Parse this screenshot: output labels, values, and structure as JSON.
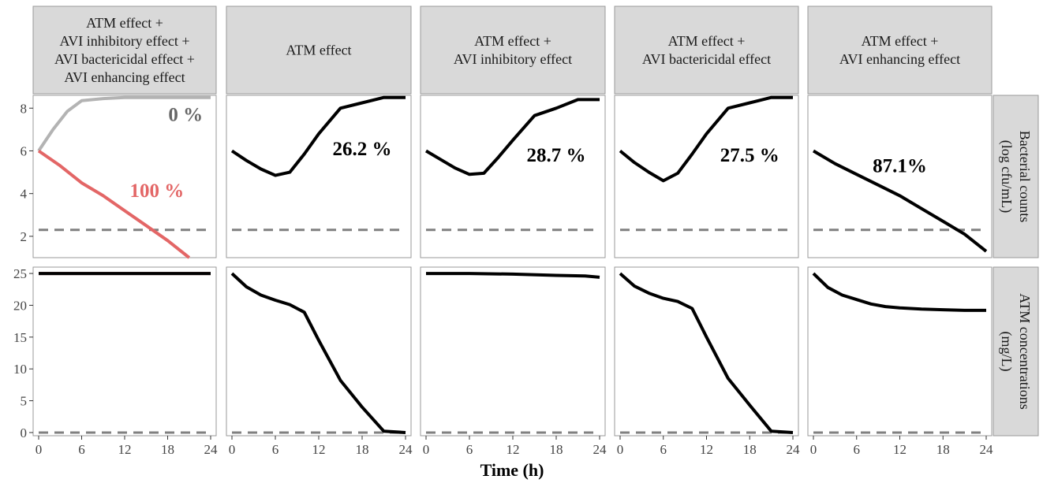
{
  "chart_data": {
    "type": "line",
    "xlabel": "Time (h)",
    "x_ticks": [
      0,
      6,
      12,
      18,
      24
    ],
    "xlim": [
      0,
      24
    ],
    "columns": [
      [
        "ATM effect +",
        "AVI inhibitory effect +",
        "AVI bactericidal effect +",
        "AVI enhancing effect"
      ],
      [
        "ATM effect"
      ],
      [
        "ATM effect +",
        "AVI inhibitory effect"
      ],
      [
        "ATM effect +",
        "AVI bactericidal effect"
      ],
      [
        "ATM effect +",
        "AVI enhancing effect"
      ]
    ],
    "rows": [
      {
        "label": [
          "Bacterial counts",
          "(log cfu/mL)"
        ],
        "ylim": [
          1,
          8.6
        ],
        "y_ticks": [
          2,
          4,
          6,
          8
        ]
      },
      {
        "label": [
          "ATM concentrations",
          "(mg/L)"
        ],
        "ylim": [
          -0.5,
          26
        ],
        "y_ticks": [
          0,
          5,
          10,
          15,
          20,
          25
        ]
      }
    ],
    "colors": {
      "main": "#000000",
      "grey": "#b3b3b3",
      "red": "#e36666",
      "dashed": "#808080",
      "panel_border": "#999999",
      "strip_fill": "#d9d9d9"
    },
    "panels": [
      {
        "row": 0,
        "col": 0,
        "dashed_y": 2.3,
        "series": [
          {
            "color": "#b3b3b3",
            "x": [
              0,
              2,
              4,
              6,
              9,
              12,
              18,
              24
            ],
            "y": [
              6.0,
              7.0,
              7.85,
              8.35,
              8.45,
              8.5,
              8.5,
              8.5
            ]
          },
          {
            "color": "#e36666",
            "x": [
              0,
              3,
              6,
              9,
              12,
              15,
              18,
              21
            ],
            "y": [
              6.0,
              5.3,
              4.5,
              3.9,
              3.2,
              2.5,
              1.8,
              1.0
            ]
          }
        ],
        "annotations": [
          {
            "text": "0 %",
            "x": 20.5,
            "y": 7.4,
            "color": "#666666"
          },
          {
            "text": "100 %",
            "x": 16.5,
            "y": 3.85,
            "color": "#e36666"
          }
        ]
      },
      {
        "row": 0,
        "col": 1,
        "dashed_y": 2.3,
        "series": [
          {
            "color": "#000000",
            "x": [
              0,
              2,
              4,
              6,
              8,
              10,
              12,
              15,
              18,
              21,
              24
            ],
            "y": [
              6.0,
              5.55,
              5.15,
              4.85,
              5.0,
              5.85,
              6.8,
              8.0,
              8.25,
              8.5,
              8.5
            ]
          }
        ],
        "annotations": [
          {
            "text": "26.2 %",
            "x": 18,
            "y": 5.8,
            "color": "#000000"
          }
        ]
      },
      {
        "row": 0,
        "col": 2,
        "dashed_y": 2.3,
        "series": [
          {
            "color": "#000000",
            "x": [
              0,
              2,
              4,
              6,
              8,
              10,
              12,
              15,
              18,
              21,
              24
            ],
            "y": [
              6.0,
              5.6,
              5.2,
              4.9,
              4.95,
              5.7,
              6.5,
              7.65,
              8.0,
              8.4,
              8.4
            ]
          }
        ],
        "annotations": [
          {
            "text": "28.7 %",
            "x": 18,
            "y": 5.5,
            "color": "#000000"
          }
        ]
      },
      {
        "row": 0,
        "col": 3,
        "dashed_y": 2.3,
        "series": [
          {
            "color": "#000000",
            "x": [
              0,
              2,
              4,
              6,
              8,
              10,
              12,
              15,
              18,
              21,
              24
            ],
            "y": [
              6.0,
              5.45,
              5.0,
              4.6,
              4.95,
              5.85,
              6.8,
              8.0,
              8.25,
              8.5,
              8.5
            ]
          }
        ],
        "annotations": [
          {
            "text": "27.5 %",
            "x": 18,
            "y": 5.5,
            "color": "#000000"
          }
        ]
      },
      {
        "row": 0,
        "col": 4,
        "dashed_y": 2.3,
        "series": [
          {
            "color": "#000000",
            "x": [
              0,
              3,
              6,
              9,
              12,
              15,
              18,
              21,
              24
            ],
            "y": [
              6.0,
              5.4,
              4.9,
              4.4,
              3.9,
              3.3,
              2.7,
              2.1,
              1.3
            ]
          }
        ],
        "annotations": [
          {
            "text": "87.1%",
            "x": 12,
            "y": 5.0,
            "color": "#000000"
          }
        ]
      },
      {
        "row": 1,
        "col": 0,
        "dashed_y": 0,
        "series": [
          {
            "color": "#e36666",
            "x": [
              0,
              24
            ],
            "y": [
              25,
              25
            ]
          },
          {
            "color": "#000000",
            "x": [
              0,
              24
            ],
            "y": [
              25,
              25
            ]
          }
        ],
        "annotations": []
      },
      {
        "row": 1,
        "col": 1,
        "dashed_y": 0,
        "series": [
          {
            "color": "#000000",
            "x": [
              0,
              2,
              4,
              6,
              8,
              10,
              12,
              15,
              18,
              21,
              24
            ],
            "y": [
              25,
              22.9,
              21.6,
              20.8,
              20.1,
              18.9,
              14.5,
              8.2,
              4.0,
              0.2,
              0
            ]
          }
        ],
        "annotations": []
      },
      {
        "row": 1,
        "col": 2,
        "dashed_y": 0,
        "series": [
          {
            "color": "#000000",
            "x": [
              0,
              6,
              12,
              18,
              22,
              24
            ],
            "y": [
              25,
              25,
              24.9,
              24.7,
              24.6,
              24.4
            ]
          }
        ],
        "annotations": []
      },
      {
        "row": 1,
        "col": 3,
        "dashed_y": 0,
        "series": [
          {
            "color": "#000000",
            "x": [
              0,
              2,
              4,
              6,
              8,
              10,
              12,
              15,
              18,
              21,
              24
            ],
            "y": [
              25,
              23.0,
              21.9,
              21.1,
              20.6,
              19.5,
              15.0,
              8.5,
              4.3,
              0.2,
              0
            ]
          }
        ],
        "annotations": []
      },
      {
        "row": 1,
        "col": 4,
        "dashed_y": 0,
        "series": [
          {
            "color": "#000000",
            "x": [
              0,
              2,
              4,
              6,
              8,
              10,
              12,
              15,
              18,
              21,
              24
            ],
            "y": [
              25,
              22.8,
              21.6,
              20.9,
              20.2,
              19.8,
              19.6,
              19.4,
              19.3,
              19.2,
              19.2
            ]
          }
        ],
        "annotations": []
      }
    ]
  }
}
